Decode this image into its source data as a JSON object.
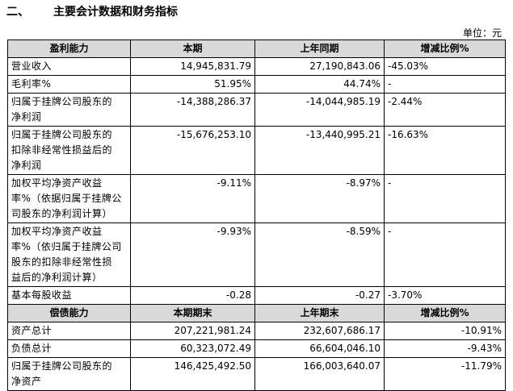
{
  "section": {
    "number": "二、",
    "title": "主要会计数据和财务指标"
  },
  "unit_label": "单位：元",
  "profit": {
    "headers": [
      "盈利能力",
      "本期",
      "上年同期",
      "增减比例%"
    ],
    "rows": [
      {
        "label": "营业收入",
        "current": "14,945,831.79",
        "previous": "27,190,843.06",
        "change": "-45.03%"
      },
      {
        "label": "毛利率%",
        "current": "51.95%",
        "previous": "44.74%",
        "change": "-"
      },
      {
        "label": "归属于挂牌公司股东的\n净利润",
        "current": "-14,388,286.37",
        "previous": "-14,044,985.19",
        "change": "-2.44%"
      },
      {
        "label": "归属于挂牌公司股东的\n扣除非经常性损益后的\n净利润",
        "current": "-15,676,253.10",
        "previous": "-13,440,995.21",
        "change": "-16.63%"
      },
      {
        "label": "加权平均净资产收益\n率%（依据归属于挂牌公\n司股东的净利润计算）",
        "current": "-9.11%",
        "previous": "-8.97%",
        "change": "-"
      },
      {
        "label": "加权平均净资产收益\n率%（依归属于挂牌公司\n股东的扣除非经常性损\n益后的净利润计算）",
        "current": "-9.93%",
        "previous": "-8.59%",
        "change": "-"
      },
      {
        "label": "基本每股收益",
        "current": "-0.28",
        "previous": "-0.27",
        "change": "-3.70%"
      }
    ]
  },
  "solvency": {
    "headers": [
      "偿债能力",
      "本期期末",
      "上年期末",
      "增减比例%"
    ],
    "rows": [
      {
        "label": "资产总计",
        "current": "207,221,981.24",
        "previous": "232,607,686.17",
        "change": "-10.91%"
      },
      {
        "label": "负债总计",
        "current": "60,323,072.49",
        "previous": "66,604,046.10",
        "change": "-9.43%"
      },
      {
        "label": "归属于挂牌公司股东的\n净资产",
        "current": "146,425,492.50",
        "previous": "166,003,640.07",
        "change": "-11.79%"
      }
    ]
  }
}
